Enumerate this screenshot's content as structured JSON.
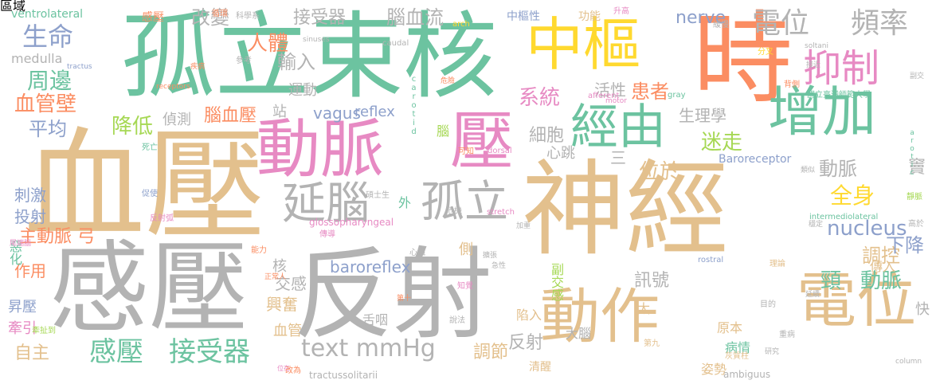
{
  "palette": {
    "tan": "#e3c08d",
    "green": "#6cc3a0",
    "pink": "#e78ac3",
    "orange": "#fb8d62",
    "blue": "#8da0cb",
    "gray": "#b3b3b3",
    "lime": "#a6d854",
    "yellow": "#ffd92f"
  },
  "words": [
    {
      "text": "神經",
      "color": "tan"
    },
    {
      "text": "血壓",
      "color": "tan"
    },
    {
      "text": "感壓",
      "color": "gray"
    },
    {
      "text": "反射",
      "color": "gray"
    },
    {
      "text": "孤立束核",
      "color": "green"
    },
    {
      "text": "時",
      "color": "orange"
    },
    {
      "text": "中樞",
      "color": "yellow"
    },
    {
      "text": "動脈",
      "color": "pink"
    },
    {
      "text": "壓",
      "color": "pink"
    },
    {
      "text": "動作",
      "color": "tan"
    },
    {
      "text": "電位",
      "color": "tan"
    },
    {
      "text": "增加",
      "color": "green"
    },
    {
      "text": "經由",
      "color": "green"
    },
    {
      "text": "抑制",
      "color": "pink"
    },
    {
      "text": "延腦",
      "color": "gray"
    },
    {
      "text": "孤立",
      "color": "gray"
    },
    {
      "text": "電位",
      "color": "gray"
    },
    {
      "text": "頻率",
      "color": "gray"
    },
    {
      "text": "生命",
      "color": "blue"
    },
    {
      "text": "text mmHg",
      "color": "gray"
    },
    {
      "text": "感壓",
      "color": "green"
    },
    {
      "text": "接受器",
      "color": "green"
    },
    {
      "text": "nucleus",
      "color": "blue"
    },
    {
      "text": "全身",
      "color": "yellow"
    },
    {
      "text": "周邊",
      "color": "green"
    },
    {
      "text": "血管壁",
      "color": "orange"
    },
    {
      "text": "平均",
      "color": "blue"
    },
    {
      "text": "降低",
      "color": "lime"
    },
    {
      "text": "人體",
      "color": "orange"
    },
    {
      "text": "腦血流",
      "color": "gray"
    },
    {
      "text": "改變",
      "color": "gray"
    },
    {
      "text": "接受器",
      "color": "gray"
    },
    {
      "text": "nerve",
      "color": "blue"
    },
    {
      "text": "輸入",
      "color": "gray"
    },
    {
      "text": "系統",
      "color": "pink"
    },
    {
      "text": "細胞",
      "color": "gray"
    },
    {
      "text": "患者",
      "color": "orange"
    },
    {
      "text": "活性",
      "color": "gray"
    },
    {
      "text": "迷走",
      "color": "lime"
    },
    {
      "text": "生理學",
      "color": "gray"
    },
    {
      "text": "動脈",
      "color": "gray"
    },
    {
      "text": "竇",
      "color": "gray"
    },
    {
      "text": "腦血壓",
      "color": "orange"
    },
    {
      "text": "站",
      "color": "gray"
    },
    {
      "text": "vagus",
      "color": "blue"
    },
    {
      "text": "reflex",
      "color": "blue"
    },
    {
      "text": "運動",
      "color": "gray"
    },
    {
      "text": "偵測",
      "color": "gray"
    },
    {
      "text": "心跳",
      "color": "gray"
    },
    {
      "text": "位於",
      "color": "tan"
    },
    {
      "text": "調控",
      "color": "tan"
    },
    {
      "text": "下降",
      "color": "blue"
    },
    {
      "text": "頸",
      "color": "green"
    },
    {
      "text": "動脈",
      "color": "green"
    },
    {
      "text": "訊號",
      "color": "gray"
    },
    {
      "text": "baroreflex",
      "color": "blue"
    },
    {
      "text": "核",
      "color": "gray"
    },
    {
      "text": "交感",
      "color": "gray"
    },
    {
      "text": "興奮",
      "color": "tan"
    },
    {
      "text": "血管",
      "color": "tan"
    },
    {
      "text": "舌咽",
      "color": "gray"
    },
    {
      "text": "反射",
      "color": "gray"
    },
    {
      "text": "調節",
      "color": "tan"
    },
    {
      "text": "陷入",
      "color": "tan"
    },
    {
      "text": "大腦",
      "color": "gray"
    },
    {
      "text": "副交感",
      "color": "lime"
    },
    {
      "text": "傳入",
      "color": "tan"
    },
    {
      "text": "原本",
      "color": "tan"
    },
    {
      "text": "病情",
      "color": "green"
    },
    {
      "text": "姿勢",
      "color": "tan"
    },
    {
      "text": "清醒",
      "color": "tan"
    },
    {
      "text": "主動脈 弓",
      "color": "orange"
    },
    {
      "text": "作用",
      "color": "orange"
    },
    {
      "text": "刺激",
      "color": "blue"
    },
    {
      "text": "投射",
      "color": "blue"
    },
    {
      "text": "惡化",
      "color": "green"
    },
    {
      "text": "昇壓",
      "color": "blue"
    },
    {
      "text": "牽引",
      "color": "pink"
    },
    {
      "text": "自主",
      "color": "tan"
    },
    {
      "text": "medulla",
      "color": "gray"
    },
    {
      "text": "ventrolateral",
      "color": "green"
    },
    {
      "text": "感壓",
      "color": "orange"
    },
    {
      "text": "中樞性",
      "color": "blue"
    },
    {
      "text": "功能",
      "color": "tan"
    },
    {
      "text": "Baroreceptor",
      "color": "blue"
    },
    {
      "text": "快",
      "color": "gray"
    },
    {
      "text": "太",
      "color": "tan"
    },
    {
      "text": "外",
      "color": "green"
    },
    {
      "text": "側",
      "color": "tan"
    },
    {
      "text": "腦",
      "color": "lime"
    },
    {
      "text": "三",
      "color": "gray"
    },
    {
      "text": "glossopharyngeal",
      "color": "pink"
    },
    {
      "text": "tractussolitarii",
      "color": "gray"
    },
    {
      "text": "ambiguus",
      "color": "gray"
    },
    {
      "text": "intermediolateral",
      "color": "green"
    },
    {
      "text": "rostral",
      "color": "blue"
    },
    {
      "text": "column",
      "color": "gray"
    },
    {
      "text": "arotic",
      "color": "green"
    },
    {
      "text": "carotid",
      "color": "green"
    },
    {
      "text": "sinuses",
      "color": "gray"
    },
    {
      "text": "stretch",
      "color": "pink"
    },
    {
      "text": "dorsal",
      "color": "pink"
    },
    {
      "text": "motor",
      "color": "pink"
    },
    {
      "text": "gray",
      "color": "green"
    },
    {
      "text": "afferent",
      "color": "pink"
    },
    {
      "text": "receptors",
      "color": "orange"
    },
    {
      "text": "tractus",
      "color": "blue"
    },
    {
      "text": "caudal",
      "color": "gray"
    },
    {
      "text": "soltani",
      "color": "gray"
    },
    {
      "text": "arch",
      "color": "yellow"
    },
    {
      "text": "國立臺灣師範大學",
      "color": "green"
    },
    {
      "text": "灰質柱",
      "color": "tan"
    },
    {
      "text": "第十",
      "color": "orange"
    },
    {
      "text": "第九",
      "color": "tan"
    },
    {
      "text": "研究",
      "color": "gray"
    },
    {
      "text": "位在",
      "color": "pink"
    },
    {
      "text": "死亡",
      "color": "green"
    },
    {
      "text": "促使",
      "color": "blue"
    },
    {
      "text": "反射弧",
      "color": "pink"
    },
    {
      "text": "尾端腦",
      "color": "pink"
    },
    {
      "text": "牽扯到",
      "color": "lime"
    },
    {
      "text": "科學系",
      "color": "gray"
    },
    {
      "text": "循環",
      "color": "orange"
    },
    {
      "text": "升高",
      "color": "pink"
    },
    {
      "text": "緩慢",
      "color": "gray"
    },
    {
      "text": "背側",
      "color": "orange"
    },
    {
      "text": "接近",
      "color": "gray"
    },
    {
      "text": "危險",
      "color": "orange"
    },
    {
      "text": "危機",
      "color": "gray"
    },
    {
      "text": "急性",
      "color": "gray"
    },
    {
      "text": "加重",
      "color": "gray"
    },
    {
      "text": "傳導",
      "color": "pink"
    },
    {
      "text": "副交",
      "color": "gray"
    },
    {
      "text": "理論",
      "color": "tan"
    },
    {
      "text": "參考",
      "color": "gray"
    },
    {
      "text": "疾病",
      "color": "orange"
    },
    {
      "text": "心臟",
      "color": "gray"
    },
    {
      "text": "能力",
      "color": "orange"
    },
    {
      "text": "正常人",
      "color": "orange"
    },
    {
      "text": "改為",
      "color": "orange"
    },
    {
      "text": "延續",
      "color": "gray"
    },
    {
      "text": "目的",
      "color": "gray"
    },
    {
      "text": "重病",
      "color": "gray"
    },
    {
      "text": "穩定",
      "color": "gray"
    },
    {
      "text": "類似",
      "color": "gray"
    },
    {
      "text": "高於",
      "color": "gray"
    },
    {
      "text": "靜脈",
      "color": "lime"
    },
    {
      "text": "知覺",
      "color": "pink"
    },
    {
      "text": "碩士生",
      "color": "gray"
    },
    {
      "text": "說法",
      "color": "gray"
    },
    {
      "text": "擴張",
      "color": "gray"
    },
    {
      "text": "可知",
      "color": "orange"
    },
    {
      "text": "分叉",
      "color": "yellow"
    },
    {
      "text": "區域",
      "color": "gray"
    }
  ]
}
